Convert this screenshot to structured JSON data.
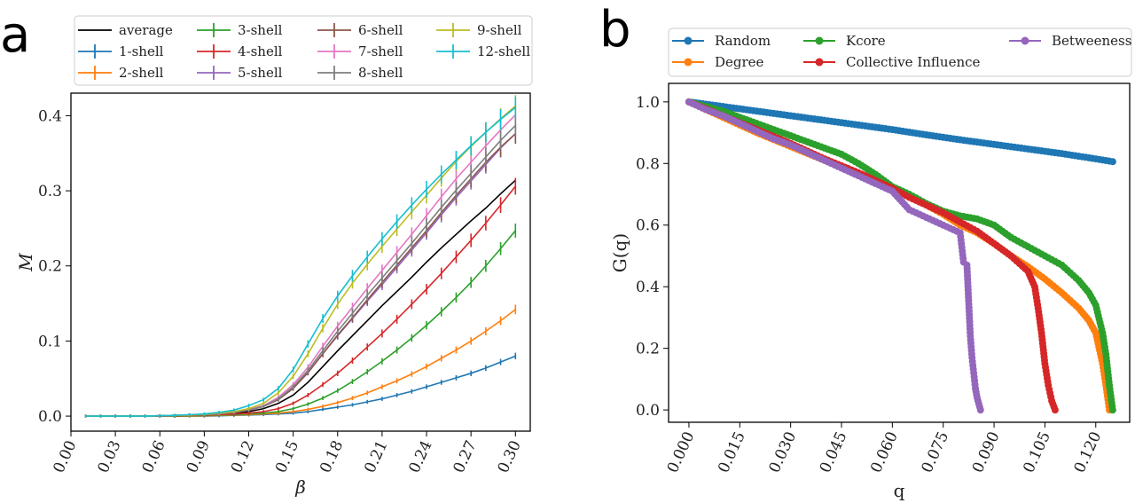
{
  "colors": {
    "average": "#000000",
    "s1": "#1f77b4",
    "s2": "#ff7f0e",
    "s3": "#2ca02c",
    "s4": "#d62728",
    "s5": "#9467bd",
    "s6": "#8c564b",
    "s7": "#e377c2",
    "s8": "#7f7f7f",
    "s9": "#bcbd22",
    "s12": "#17becf"
  },
  "chart_data": [
    {
      "panel": "a",
      "type": "line",
      "xlabel": "β",
      "ylabel": "M",
      "xlim": [
        0.0,
        0.31
      ],
      "ylim": [
        -0.02,
        0.43
      ],
      "xticks": [
        "0.00",
        "0.03",
        "0.06",
        "0.09",
        "0.12",
        "0.15",
        "0.18",
        "0.21",
        "0.24",
        "0.27",
        "0.30"
      ],
      "xtick_values": [
        0.0,
        0.03,
        0.06,
        0.09,
        0.12,
        0.15,
        0.18,
        0.21,
        0.24,
        0.27,
        0.3
      ],
      "yticks": [
        "0.0",
        "0.1",
        "0.2",
        "0.3",
        "0.4"
      ],
      "ytick_values": [
        0.0,
        0.1,
        0.2,
        0.3,
        0.4
      ],
      "legend_placement": "top",
      "x": [
        0.01,
        0.02,
        0.03,
        0.04,
        0.05,
        0.06,
        0.07,
        0.08,
        0.09,
        0.1,
        0.11,
        0.12,
        0.13,
        0.14,
        0.15,
        0.16,
        0.17,
        0.18,
        0.19,
        0.2,
        0.21,
        0.22,
        0.23,
        0.24,
        0.25,
        0.26,
        0.27,
        0.28,
        0.29,
        0.3
      ],
      "series": [
        {
          "name": "average",
          "color_key": "average",
          "errorbars": false,
          "values": [
            0,
            0,
            0,
            0,
            0,
            0.0005,
            0.001,
            0.0015,
            0.002,
            0.003,
            0.004,
            0.006,
            0.01,
            0.017,
            0.028,
            0.045,
            0.066,
            0.087,
            0.107,
            0.127,
            0.147,
            0.166,
            0.185,
            0.205,
            0.224,
            0.242,
            0.26,
            0.277,
            0.296,
            0.314
          ]
        },
        {
          "name": "1-shell",
          "color_key": "s1",
          "errorbars": true,
          "values": [
            0,
            0,
            0,
            0,
            0,
            0,
            0,
            0,
            0,
            0.0005,
            0.001,
            0.0015,
            0.002,
            0.003,
            0.004,
            0.006,
            0.009,
            0.012,
            0.015,
            0.019,
            0.023,
            0.028,
            0.033,
            0.039,
            0.045,
            0.051,
            0.057,
            0.064,
            0.072,
            0.08
          ]
        },
        {
          "name": "2-shell",
          "color_key": "s2",
          "errorbars": true,
          "values": [
            0,
            0,
            0,
            0,
            0,
            0,
            0,
            0,
            0.0005,
            0.001,
            0.0015,
            0.002,
            0.003,
            0.004,
            0.006,
            0.009,
            0.013,
            0.018,
            0.024,
            0.031,
            0.039,
            0.047,
            0.056,
            0.066,
            0.077,
            0.088,
            0.1,
            0.113,
            0.127,
            0.142
          ]
        },
        {
          "name": "3-shell",
          "color_key": "s3",
          "errorbars": true,
          "values": [
            0,
            0,
            0,
            0,
            0,
            0,
            0,
            0.0005,
            0.001,
            0.0015,
            0.002,
            0.003,
            0.004,
            0.006,
            0.01,
            0.016,
            0.024,
            0.034,
            0.046,
            0.059,
            0.073,
            0.088,
            0.104,
            0.121,
            0.139,
            0.158,
            0.178,
            0.2,
            0.223,
            0.247
          ]
        },
        {
          "name": "4-shell",
          "color_key": "s4",
          "errorbars": true,
          "values": [
            0,
            0,
            0,
            0,
            0,
            0,
            0.0005,
            0.001,
            0.0015,
            0.002,
            0.003,
            0.004,
            0.006,
            0.01,
            0.017,
            0.028,
            0.042,
            0.057,
            0.074,
            0.092,
            0.11,
            0.129,
            0.149,
            0.169,
            0.19,
            0.212,
            0.234,
            0.257,
            0.281,
            0.306
          ]
        },
        {
          "name": "5-shell",
          "color_key": "s5",
          "errorbars": true,
          "values": [
            0,
            0,
            0,
            0,
            0,
            0.0005,
            0.001,
            0.0015,
            0.002,
            0.003,
            0.005,
            0.008,
            0.013,
            0.022,
            0.037,
            0.058,
            0.083,
            0.107,
            0.13,
            0.153,
            0.175,
            0.198,
            0.221,
            0.244,
            0.268,
            0.291,
            0.313,
            0.335,
            0.357,
            0.376
          ]
        },
        {
          "name": "6-shell",
          "color_key": "s6",
          "errorbars": true,
          "values": [
            0,
            0,
            0,
            0,
            0,
            0.0005,
            0.001,
            0.0015,
            0.002,
            0.003,
            0.005,
            0.008,
            0.013,
            0.022,
            0.037,
            0.058,
            0.083,
            0.108,
            0.131,
            0.155,
            0.178,
            0.201,
            0.224,
            0.247,
            0.271,
            0.294,
            0.316,
            0.338,
            0.358,
            0.376
          ]
        },
        {
          "name": "7-shell",
          "color_key": "s7",
          "errorbars": true,
          "values": [
            0,
            0,
            0,
            0,
            0,
            0.0005,
            0.001,
            0.0015,
            0.002,
            0.003,
            0.005,
            0.009,
            0.014,
            0.025,
            0.042,
            0.065,
            0.093,
            0.12,
            0.145,
            0.17,
            0.194,
            0.218,
            0.242,
            0.267,
            0.292,
            0.316,
            0.338,
            0.36,
            0.381,
            0.401
          ]
        },
        {
          "name": "8-shell",
          "color_key": "s8",
          "errorbars": true,
          "values": [
            0,
            0,
            0,
            0,
            0,
            0.0005,
            0.001,
            0.0015,
            0.002,
            0.003,
            0.005,
            0.008,
            0.013,
            0.023,
            0.039,
            0.061,
            0.087,
            0.113,
            0.137,
            0.161,
            0.184,
            0.207,
            0.23,
            0.254,
            0.278,
            0.301,
            0.323,
            0.345,
            0.367,
            0.387
          ]
        },
        {
          "name": "9-shell",
          "color_key": "s9",
          "errorbars": true,
          "values": [
            0,
            0,
            0,
            0,
            0,
            0.0005,
            0.001,
            0.0015,
            0.0025,
            0.004,
            0.006,
            0.01,
            0.017,
            0.031,
            0.053,
            0.083,
            0.117,
            0.149,
            0.177,
            0.202,
            0.226,
            0.249,
            0.272,
            0.294,
            0.317,
            0.339,
            0.359,
            0.378,
            0.396,
            0.413
          ]
        },
        {
          "name": "12-shell",
          "color_key": "s12",
          "errorbars": true,
          "values": [
            0,
            0,
            0,
            0,
            0,
            0.0005,
            0.001,
            0.002,
            0.003,
            0.005,
            0.008,
            0.014,
            0.022,
            0.037,
            0.062,
            0.096,
            0.13,
            0.16,
            0.187,
            0.212,
            0.236,
            0.259,
            0.281,
            0.302,
            0.322,
            0.341,
            0.36,
            0.378,
            0.395,
            0.411
          ]
        }
      ]
    },
    {
      "panel": "b",
      "type": "line",
      "xlabel": "q",
      "ylabel": "G(q)",
      "xlim": [
        -0.006,
        0.13
      ],
      "ylim": [
        -0.04,
        1.06
      ],
      "xticks": [
        "0.000",
        "0.015",
        "0.030",
        "0.045",
        "0.060",
        "0.075",
        "0.090",
        "0.105",
        "0.120"
      ],
      "xtick_values": [
        0.0,
        0.015,
        0.03,
        0.045,
        0.06,
        0.075,
        0.09,
        0.105,
        0.12
      ],
      "yticks": [
        "0.0",
        "0.2",
        "0.4",
        "0.6",
        "0.8",
        "1.0"
      ],
      "ytick_values": [
        0.0,
        0.2,
        0.4,
        0.6,
        0.8,
        1.0
      ],
      "legend_placement": "top",
      "series": [
        {
          "name": "Random",
          "color_key": "s1",
          "x": [
            0,
            0.01,
            0.02,
            0.03,
            0.04,
            0.05,
            0.06,
            0.07,
            0.08,
            0.09,
            0.1,
            0.11,
            0.12,
            0.125
          ],
          "y": [
            1.0,
            0.985,
            0.97,
            0.955,
            0.94,
            0.925,
            0.91,
            0.893,
            0.877,
            0.862,
            0.847,
            0.832,
            0.815,
            0.806
          ]
        },
        {
          "name": "Degree",
          "color_key": "s2",
          "x": [
            0,
            0.01,
            0.02,
            0.03,
            0.04,
            0.05,
            0.06,
            0.065,
            0.07,
            0.075,
            0.08,
            0.085,
            0.09,
            0.095,
            0.1,
            0.105,
            0.11,
            0.115,
            0.118,
            0.12,
            0.122,
            0.123,
            0.124
          ],
          "y": [
            1.0,
            0.95,
            0.9,
            0.855,
            0.81,
            0.765,
            0.72,
            0.695,
            0.665,
            0.635,
            0.6,
            0.575,
            0.54,
            0.5,
            0.465,
            0.425,
            0.38,
            0.33,
            0.29,
            0.25,
            0.15,
            0.08,
            0.0
          ]
        },
        {
          "name": "Kcore",
          "color_key": "s3",
          "x": [
            0,
            0.01,
            0.02,
            0.03,
            0.04,
            0.045,
            0.05,
            0.055,
            0.06,
            0.065,
            0.07,
            0.075,
            0.08,
            0.085,
            0.09,
            0.095,
            0.1,
            0.105,
            0.11,
            0.115,
            0.118,
            0.12,
            0.122,
            0.123,
            0.124,
            0.125
          ],
          "y": [
            1.0,
            0.97,
            0.93,
            0.89,
            0.85,
            0.83,
            0.8,
            0.765,
            0.725,
            0.7,
            0.67,
            0.645,
            0.63,
            0.62,
            0.6,
            0.56,
            0.53,
            0.5,
            0.47,
            0.42,
            0.38,
            0.34,
            0.25,
            0.18,
            0.08,
            0.0
          ]
        },
        {
          "name": "Collective Influence",
          "color_key": "s4",
          "x": [
            0,
            0.01,
            0.02,
            0.03,
            0.04,
            0.05,
            0.06,
            0.065,
            0.07,
            0.075,
            0.08,
            0.085,
            0.09,
            0.095,
            0.1,
            0.102,
            0.103,
            0.104,
            0.105,
            0.106,
            0.107,
            0.108
          ],
          "y": [
            1.0,
            0.955,
            0.91,
            0.865,
            0.815,
            0.77,
            0.72,
            0.69,
            0.665,
            0.64,
            0.61,
            0.58,
            0.54,
            0.5,
            0.45,
            0.4,
            0.33,
            0.25,
            0.15,
            0.08,
            0.03,
            0.0
          ]
        },
        {
          "name": "Betweeness",
          "color_key": "s5",
          "x": [
            0,
            0.005,
            0.01,
            0.015,
            0.02,
            0.025,
            0.03,
            0.035,
            0.04,
            0.045,
            0.05,
            0.055,
            0.06,
            0.065,
            0.07,
            0.075,
            0.078,
            0.08,
            0.081,
            0.082,
            0.083,
            0.0835,
            0.084,
            0.0845,
            0.085,
            0.0855,
            0.086
          ],
          "y": [
            1.0,
            0.975,
            0.955,
            0.93,
            0.905,
            0.88,
            0.86,
            0.835,
            0.81,
            0.785,
            0.76,
            0.735,
            0.71,
            0.65,
            0.625,
            0.6,
            0.585,
            0.575,
            0.48,
            0.47,
            0.24,
            0.17,
            0.12,
            0.07,
            0.04,
            0.02,
            0.0
          ]
        }
      ]
    }
  ],
  "panels": {
    "a": {
      "label": "a"
    },
    "b": {
      "label": "b"
    }
  }
}
